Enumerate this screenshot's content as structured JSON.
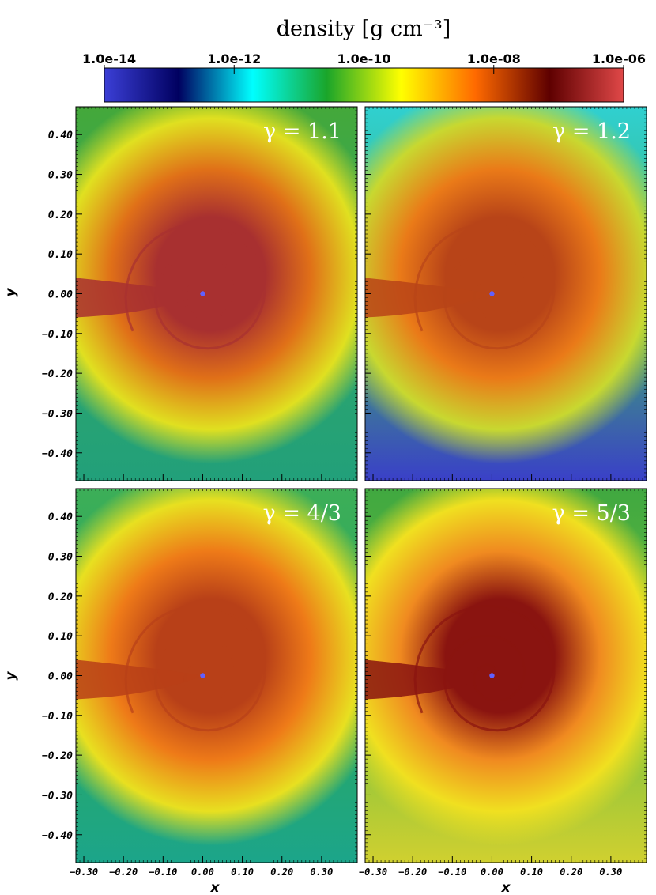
{
  "colorbar": {
    "title": "density [g cm⁻³]",
    "ticks": [
      "1.0e-14",
      "1.0e-12",
      "1.0e-10",
      "1.0e-08",
      "1.0e-06"
    ],
    "stops": [
      "#3b3fd6",
      "#000060",
      "#00ffff",
      "#1aa52a",
      "#ffff00",
      "#ff6a00",
      "#5e0000",
      "#e04848"
    ]
  },
  "axes": {
    "xlabel": "x",
    "ylabel": "y",
    "xticks": [
      "-0.30",
      "-0.20",
      "-0.10",
      "0.00",
      "0.10",
      "0.20",
      "0.30"
    ],
    "yticks": [
      "0.40",
      "0.30",
      "0.20",
      "0.10",
      "0.00",
      "-0.10",
      "-0.20",
      "-0.30",
      "-0.40"
    ]
  },
  "panels": [
    {
      "label": "γ = 1.1",
      "outer": "#2ea66a",
      "mid": "#e0e020",
      "inner": "#e07018",
      "core": "#a83030",
      "top_color": "#44a83a",
      "bottom_color": "#22a07a"
    },
    {
      "label": "γ = 1.2",
      "outer": "#3fb06a",
      "mid": "#c8d830",
      "inner": "#ea7a18",
      "core": "#b84418",
      "top_color": "#30d0d0",
      "bottom_color": "#3a40c8"
    },
    {
      "label": "γ = 4/3",
      "outer": "#2aa860",
      "mid": "#e8e020",
      "inner": "#ee7a18",
      "core": "#b84018",
      "top_color": "#3cae58",
      "bottom_color": "#1ca58a"
    },
    {
      "label": "γ = 5/3",
      "outer": "#70c040",
      "mid": "#f0e020",
      "inner": "#f08a20",
      "core": "#8a1410",
      "top_color": "#40a840",
      "bottom_color": "#d0d030"
    }
  ]
}
